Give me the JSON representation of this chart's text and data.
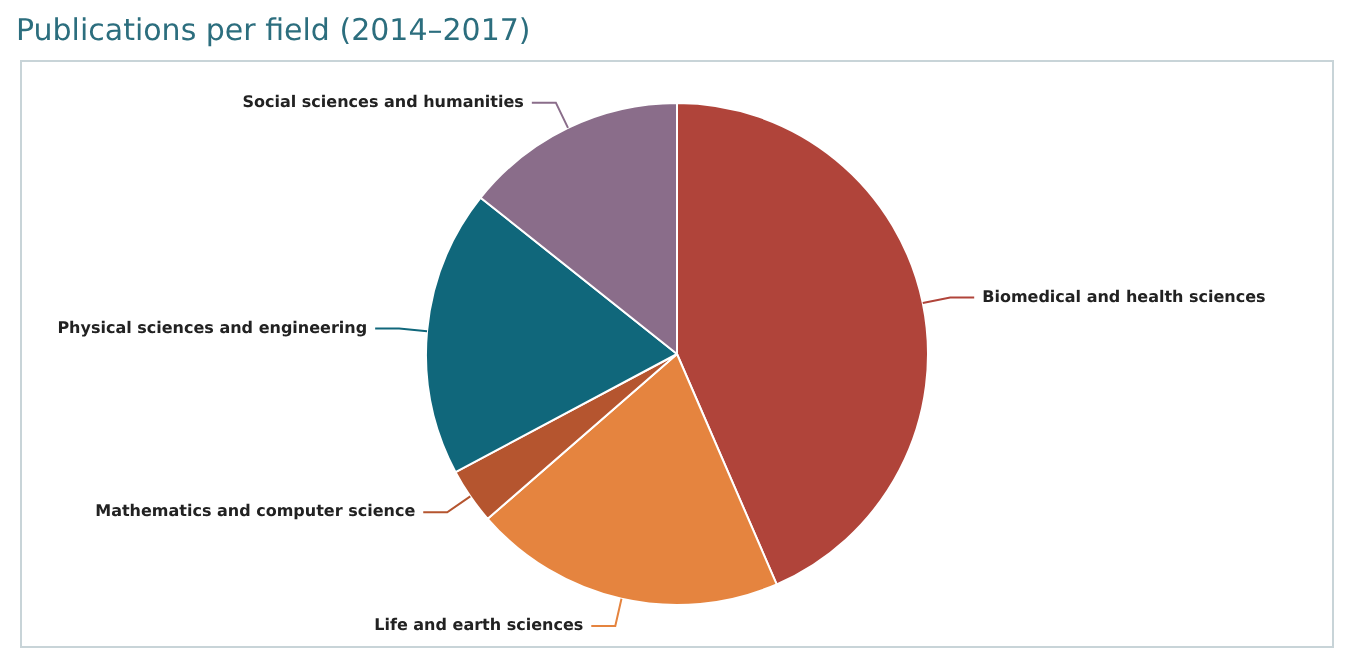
{
  "chart_data": {
    "type": "pie",
    "title": "Publications per field (2014–2017)",
    "categories": [
      "Biomedical and health sciences",
      "Life and earth sciences",
      "Mathematics and computer science",
      "Physical sciences and engineering",
      "Social sciences and humanities"
    ],
    "values": [
      43.5,
      20.1,
      3.6,
      18.5,
      14.3
    ],
    "colors": [
      "#b0443a",
      "#e5843f",
      "#b5552f",
      "#10677b",
      "#8a6d8a"
    ],
    "legend": false
  }
}
